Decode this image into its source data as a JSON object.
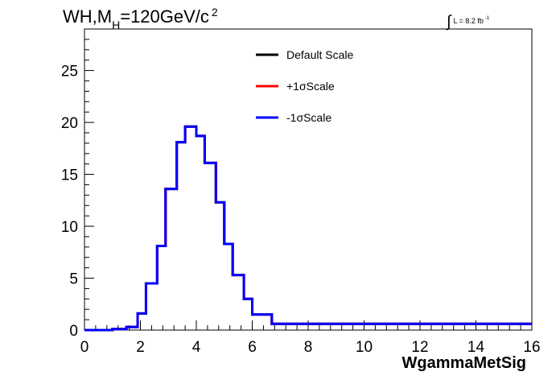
{
  "header": {
    "title_main": "WH,M",
    "title_sub": "H",
    "title_rest": "=120GeV/c",
    "title_sup": "2",
    "lumi_integral": "∫",
    "lumi_text": "L = 8.2 fb",
    "lumi_sup": "-1"
  },
  "chart_data": {
    "type": "line",
    "style": "step-histogram",
    "xlabel": "WgammaMetSig",
    "ylabel": "",
    "xlim": [
      0,
      16
    ],
    "ylim": [
      0,
      29
    ],
    "xticks": [
      0,
      2,
      4,
      6,
      8,
      10,
      12,
      14,
      16
    ],
    "yticks": [
      0,
      5,
      10,
      15,
      20,
      25
    ],
    "grid": false,
    "legend_position": "top-center",
    "bin_edges": [
      0,
      0.5,
      1.0,
      1.5,
      1.9,
      2.2,
      2.6,
      2.9,
      3.3,
      3.6,
      4.0,
      4.3,
      4.7,
      5.0,
      5.3,
      5.7,
      6.0,
      6.7,
      16
    ],
    "series": [
      {
        "name": "Default Scale",
        "color": "#000000",
        "values": [
          0,
          0,
          0.1,
          0.3,
          1.6,
          4.5,
          8.1,
          13.6,
          18.1,
          19.6,
          18.7,
          16.1,
          12.3,
          8.3,
          5.3,
          3.0,
          1.5,
          0.6
        ]
      },
      {
        "name": "+1σScale",
        "color": "#ff0000",
        "values": [
          0,
          0,
          0.1,
          0.3,
          1.6,
          4.5,
          8.1,
          13.6,
          18.1,
          19.6,
          18.7,
          16.1,
          12.3,
          8.3,
          5.3,
          3.0,
          1.5,
          0.6
        ]
      },
      {
        "name": "-1σScale",
        "color": "#0000ff",
        "values": [
          0,
          0,
          0.1,
          0.3,
          1.6,
          4.5,
          8.1,
          13.6,
          18.1,
          19.6,
          18.7,
          16.1,
          12.3,
          8.3,
          5.3,
          3.0,
          1.5,
          0.6
        ]
      }
    ]
  }
}
